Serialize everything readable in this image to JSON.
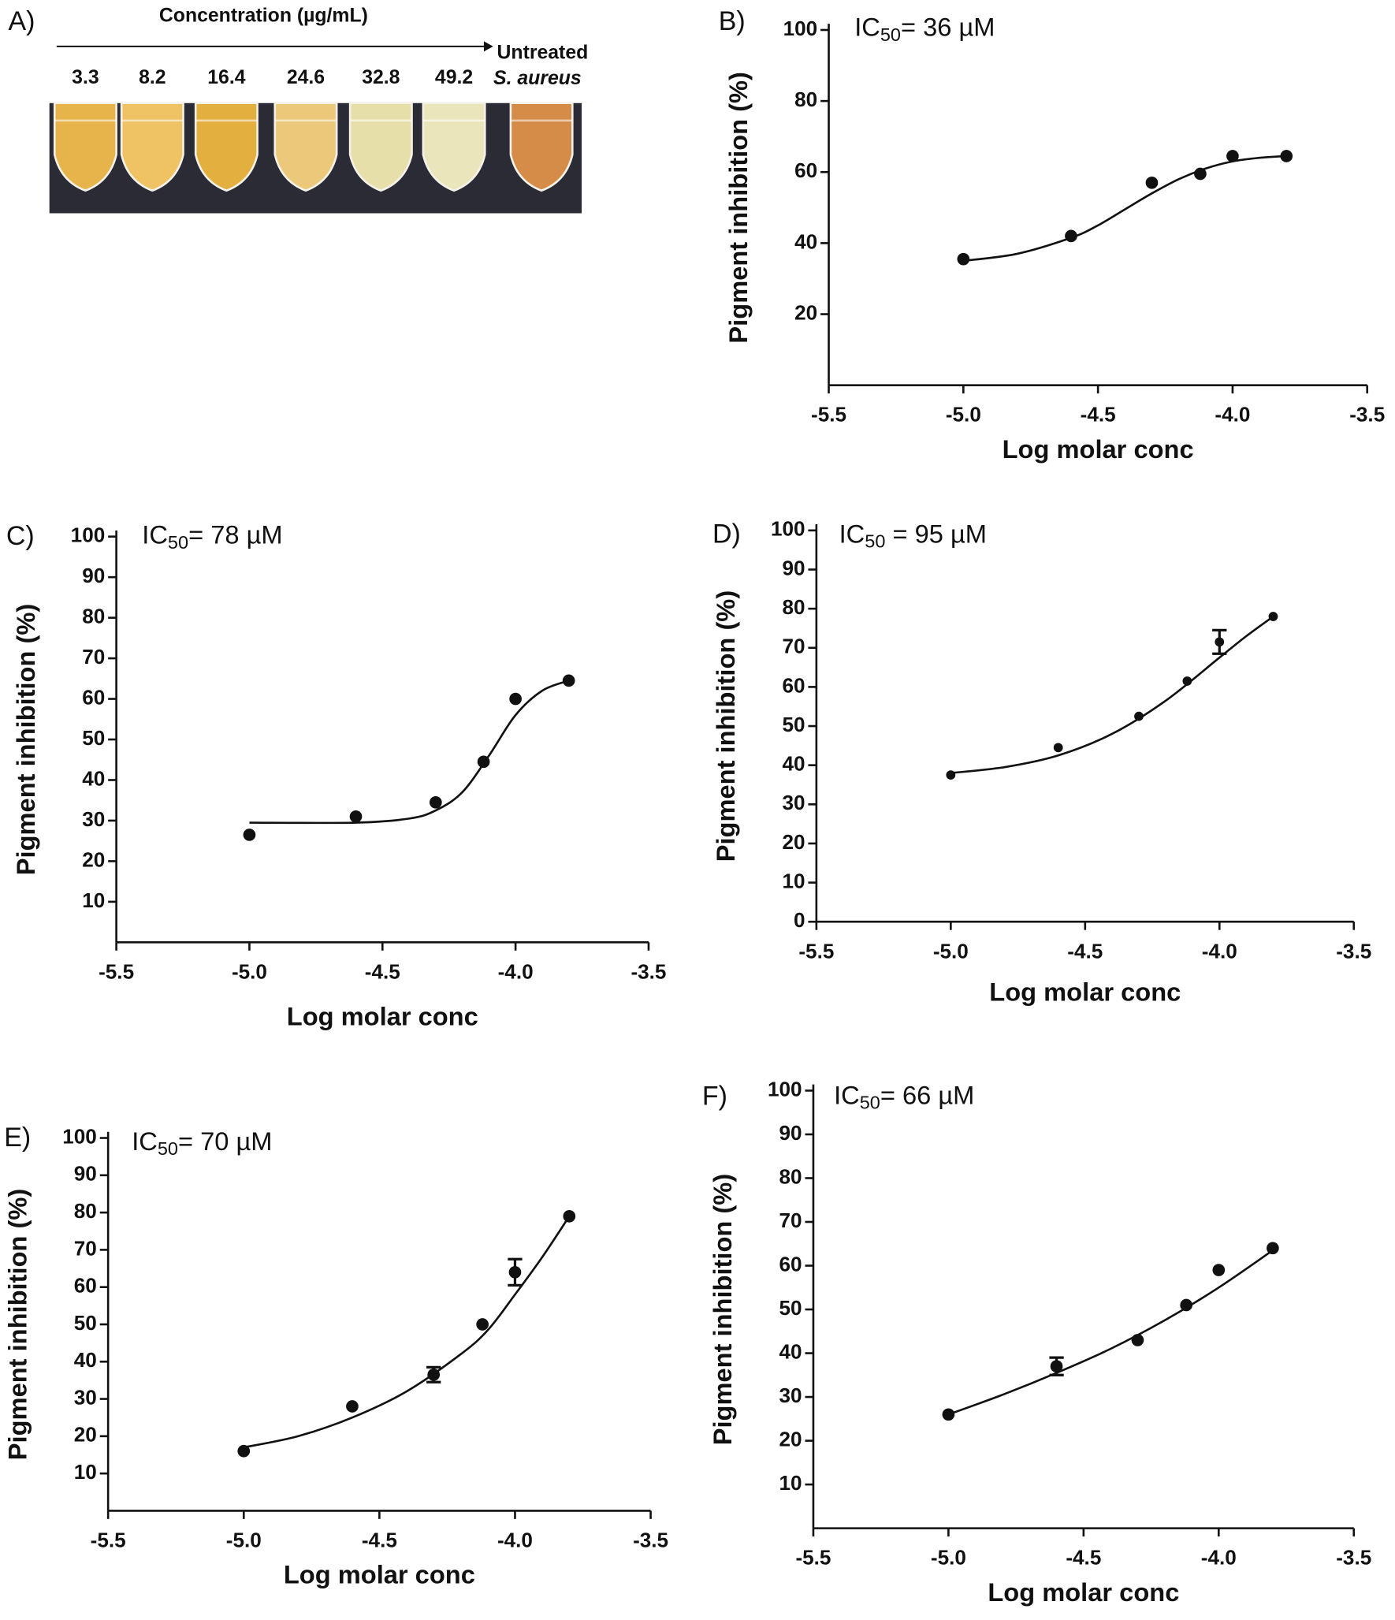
{
  "panel_a": {
    "label": "A)",
    "title": "Concentration (µg/mL)",
    "concentrations": [
      3.3,
      8.2,
      16.4,
      24.6,
      32.8,
      49.2
    ],
    "control": [
      "Untreated",
      "S. aureus"
    ]
  },
  "chart_data": [
    {
      "type": "scatter",
      "label": "B)",
      "ic50": {
        "prefix": "IC",
        "subscript": "50",
        "text": "= 36 µM"
      },
      "x_label": "Log molar conc",
      "y_label": "Pigment inhibition (%)",
      "x": [
        -5.0,
        -4.6,
        -4.3,
        -4.12,
        -4.0,
        -3.8
      ],
      "values": [
        35.5,
        42,
        57,
        59.5,
        64.5,
        64.5
      ],
      "errors": [
        null,
        null,
        null,
        null,
        null,
        null
      ],
      "curve": {
        "x": [
          -5.0,
          -4.8,
          -4.6,
          -4.5,
          -4.4,
          -4.3,
          -4.2,
          -4.1,
          -4.0,
          -3.9,
          -3.8
        ],
        "y": [
          35,
          37,
          41.5,
          45,
          49.5,
          54,
          58,
          61,
          63,
          64,
          64.5
        ]
      },
      "xlim": [
        -5.5,
        -3.5
      ],
      "xticks": [
        -5.5,
        {
          "value": -5,
          "label": "-5.0"
        },
        -4.5,
        {
          "value": -4,
          "label": "-4.0"
        },
        -3.5
      ],
      "ylim": [
        0,
        100
      ],
      "yticks": [
        20,
        40,
        60,
        80,
        100
      ]
    },
    {
      "type": "scatter",
      "label": "C)",
      "ic50": {
        "prefix": "IC",
        "subscript": "50",
        "text": "= 78 µM"
      },
      "x_label": "Log molar conc",
      "y_label": "Pigment inhibition (%)",
      "x": [
        -5.0,
        -4.6,
        -4.3,
        -4.12,
        -4.0,
        -3.8
      ],
      "values": [
        26.5,
        31,
        34.5,
        44.5,
        60,
        64.5
      ],
      "errors": [
        null,
        null,
        null,
        null,
        null,
        null
      ],
      "curve": {
        "x": [
          -5.0,
          -4.6,
          -4.4,
          -4.3,
          -4.2,
          -4.1,
          -4.0,
          -3.9,
          -3.8
        ],
        "y": [
          29.5,
          29.5,
          30.5,
          32.5,
          37,
          46,
          56,
          62,
          64.5
        ]
      },
      "xlim": [
        -5.5,
        -3.5
      ],
      "xticks": [
        -5.5,
        {
          "value": -5,
          "label": "-5.0"
        },
        -4.5,
        {
          "value": -4,
          "label": "-4.0"
        },
        -3.5
      ],
      "ylim": [
        0,
        100
      ],
      "yticks": [
        10,
        20,
        30,
        40,
        50,
        60,
        70,
        80,
        90,
        100
      ]
    },
    {
      "type": "scatter",
      "label": "D)",
      "ic50": {
        "prefix": "IC",
        "subscript": "50",
        "text": " = 95 µM"
      },
      "x_label": "Log molar conc",
      "y_label": "Pigment inhibition (%)",
      "x": [
        -5.0,
        -4.6,
        -4.3,
        -4.12,
        -4.0,
        -3.8
      ],
      "values": [
        37.5,
        44.5,
        52.5,
        61.5,
        71.5,
        78
      ],
      "errors": [
        null,
        null,
        null,
        null,
        3,
        null
      ],
      "curve": {
        "x": [
          -5.0,
          -4.8,
          -4.6,
          -4.4,
          -4.2,
          -4.0,
          -3.9,
          -3.8
        ],
        "y": [
          38,
          39.5,
          42.5,
          48,
          56.5,
          67.5,
          73,
          78
        ]
      },
      "xlim": [
        -5.5,
        -3.5
      ],
      "xticks": [
        -5.5,
        {
          "value": -5,
          "label": "-5.0"
        },
        -4.5,
        {
          "value": -4,
          "label": "-4.0"
        },
        -3.5
      ],
      "ylim": [
        0,
        100
      ],
      "yticks": [
        0,
        10,
        20,
        30,
        40,
        50,
        60,
        70,
        80,
        90,
        100
      ]
    },
    {
      "type": "scatter",
      "label": "E)",
      "ic50": {
        "prefix": "IC",
        "subscript": "50",
        "text": "= 70 µM"
      },
      "x_label": "Log molar conc",
      "y_label": "Pigment inhibition (%)",
      "x": [
        -5.0,
        -4.6,
        -4.3,
        -4.12,
        -4.0,
        -3.8
      ],
      "values": [
        16,
        28,
        36.5,
        50,
        64,
        79
      ],
      "errors": [
        null,
        null,
        2,
        null,
        3.5,
        null
      ],
      "curve": {
        "x": [
          -5.0,
          -4.8,
          -4.6,
          -4.4,
          -4.2,
          -4.1,
          -4.0,
          -3.9,
          -3.8
        ],
        "y": [
          17,
          20,
          25,
          32,
          42,
          48.5,
          58,
          68,
          79
        ]
      },
      "xlim": [
        -5.5,
        -3.5
      ],
      "xticks": [
        -5.5,
        {
          "value": -5,
          "label": "-5.0"
        },
        -4.5,
        {
          "value": -4,
          "label": "-4.0"
        },
        -3.5
      ],
      "ylim": [
        0,
        100
      ],
      "yticks": [
        10,
        20,
        30,
        40,
        50,
        60,
        70,
        80,
        90,
        100
      ]
    },
    {
      "type": "scatter",
      "label": "F)",
      "ic50": {
        "prefix": "IC",
        "subscript": "50",
        "text": "= 66 µM"
      },
      "x_label": "Log molar conc",
      "y_label": "Pigment inhibition (%)",
      "x": [
        -5.0,
        -4.6,
        -4.3,
        -4.12,
        -4.0,
        -3.8
      ],
      "values": [
        26,
        37,
        43,
        51,
        59,
        64
      ],
      "errors": [
        null,
        2,
        null,
        null,
        null,
        null
      ],
      "curve": {
        "x": [
          -5.0,
          -4.8,
          -4.6,
          -4.4,
          -4.2,
          -4.0,
          -3.8
        ],
        "y": [
          26,
          30.5,
          35.5,
          41,
          47.5,
          55,
          63.5
        ]
      },
      "xlim": [
        -5.5,
        -3.5
      ],
      "xticks": [
        -5.5,
        {
          "value": -5,
          "label": "-5.0"
        },
        -4.5,
        {
          "value": -4,
          "label": "-4.0"
        },
        -3.5
      ],
      "ylim": [
        0,
        100
      ],
      "yticks": [
        10,
        20,
        30,
        40,
        50,
        60,
        70,
        80,
        90,
        100
      ]
    }
  ]
}
